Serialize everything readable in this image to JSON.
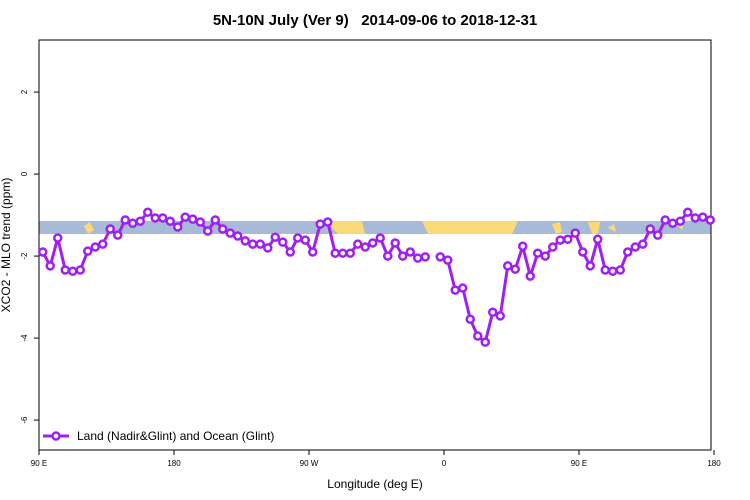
{
  "chart_data": {
    "type": "line",
    "title": "5N-10N July (Ver 9)   2014-09-06 to 2018-12-31",
    "x_label": "Longitude (deg E)",
    "y_label": "XCO2 - MLO trend (ppm)",
    "x": [
      92.5,
      97.5,
      102.5,
      107.5,
      112.5,
      117.5,
      122.5,
      127.5,
      132.5,
      137.5,
      142.5,
      147.5,
      152.5,
      157.5,
      162.5,
      167.5,
      172.5,
      177.5,
      182.5,
      187.5,
      192.5,
      197.5,
      202.5,
      207.5,
      212.5,
      217.5,
      222.5,
      227.5,
      232.5,
      237.5,
      242.5,
      247.5,
      252.5,
      257.5,
      262.5,
      267.5,
      272.5,
      277.5,
      282.5,
      287.5,
      292.5,
      297.5,
      302.5,
      307.5,
      312.5,
      317.5,
      322.5,
      327.5,
      332.5,
      337.5,
      342.5,
      347.5,
      352.5,
      357.5,
      362.5,
      367.5,
      372.5,
      377.5,
      382.5,
      387.5,
      392.5,
      397.5,
      402.5,
      407.5,
      412.5,
      417.5,
      422.5,
      427.5,
      432.5,
      437.5,
      442.5,
      447.5,
      452.5,
      457.5,
      462.5,
      467.5,
      472.5,
      477.5,
      482.5,
      487.5,
      492.5,
      497.5,
      502.5,
      507.5,
      512.5,
      517.5,
      522.5,
      527.5,
      532.5,
      537.5
    ],
    "series": [
      {
        "name": "Land (Nadir&Glint) and Ocean (Glint)",
        "color": "#a020f0",
        "values": [
          -1.9,
          -2.24,
          -1.56,
          -2.34,
          -2.37,
          -2.34,
          -1.88,
          -1.78,
          -1.71,
          -1.34,
          -1.49,
          -1.12,
          -1.2,
          -1.15,
          -0.93,
          -1.07,
          -1.07,
          -1.15,
          -1.29,
          -1.05,
          -1.1,
          -1.17,
          -1.39,
          -1.12,
          -1.34,
          -1.44,
          -1.51,
          -1.63,
          -1.71,
          -1.71,
          -1.8,
          -1.54,
          -1.66,
          -1.9,
          -1.56,
          -1.61,
          -1.9,
          -1.22,
          -1.17,
          -1.93,
          -1.93,
          -1.93,
          -1.71,
          -1.78,
          -1.68,
          -1.56,
          -2.0,
          -1.68,
          -2.0,
          -1.9,
          -2.05,
          -2.02,
          null,
          -2.02,
          -2.1,
          -2.83,
          -2.78,
          -3.54,
          -3.95,
          -4.1,
          -3.37,
          -3.46,
          -2.24,
          -2.32,
          -1.76,
          -2.49,
          -1.93,
          -2.0,
          -1.78,
          -1.61,
          -1.59,
          -1.44,
          -1.9,
          -2.24,
          -1.59,
          -2.34,
          -2.37,
          -2.34,
          -1.9,
          -1.78,
          -1.71,
          -1.34,
          -1.49,
          -1.12,
          -1.2,
          -1.15,
          -0.93,
          -1.07,
          -1.05,
          -1.12
        ]
      }
    ],
    "xlim": [
      90,
      538
    ],
    "xticks": [
      {
        "value": 90,
        "label": "90 E"
      },
      180,
      {
        "value": 270,
        "label": "90 W"
      },
      {
        "value": 360,
        "label": "0"
      },
      {
        "value": 450,
        "label": "90 E"
      },
      {
        "value": 540,
        "label": "180"
      }
    ],
    "ylim": [
      -6.73,
      3.27
    ],
    "yticks": [
      -6,
      -4,
      -2,
      0,
      2
    ],
    "legend": "bottom left"
  }
}
